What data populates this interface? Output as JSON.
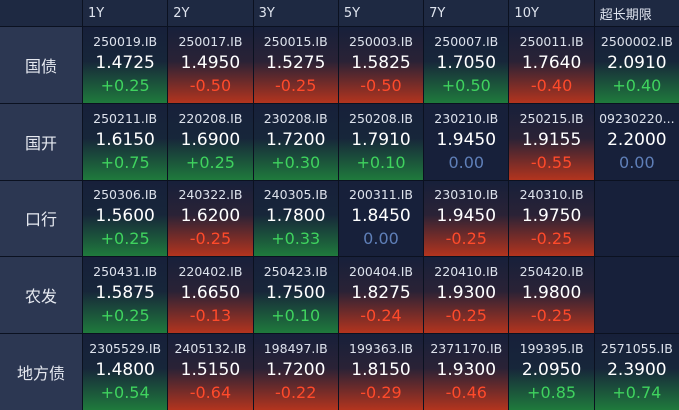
{
  "header": {
    "columns": [
      "1Y",
      "2Y",
      "3Y",
      "5Y",
      "7Y",
      "10Y",
      "超长期限"
    ]
  },
  "rows": [
    {
      "label": "国债",
      "cells": [
        {
          "code": "250019.IB",
          "yield": "1.4725",
          "change": "+0.25"
        },
        {
          "code": "250017.IB",
          "yield": "1.4950",
          "change": "-0.50"
        },
        {
          "code": "250015.IB",
          "yield": "1.5275",
          "change": "-0.25"
        },
        {
          "code": "250003.IB",
          "yield": "1.5825",
          "change": "-0.50"
        },
        {
          "code": "250007.IB",
          "yield": "1.7050",
          "change": "+0.50"
        },
        {
          "code": "250011.IB",
          "yield": "1.7640",
          "change": "-0.40"
        },
        {
          "code": "2500002.IB",
          "yield": "2.0910",
          "change": "+0.40"
        }
      ]
    },
    {
      "label": "国开",
      "cells": [
        {
          "code": "250211.IB",
          "yield": "1.6150",
          "change": "+0.75"
        },
        {
          "code": "220208.IB",
          "yield": "1.6900",
          "change": "+0.25"
        },
        {
          "code": "230208.IB",
          "yield": "1.7200",
          "change": "+0.30"
        },
        {
          "code": "250208.IB",
          "yield": "1.7910",
          "change": "+0.10"
        },
        {
          "code": "230210.IB",
          "yield": "1.9450",
          "change": "0.00"
        },
        {
          "code": "250215.IB",
          "yield": "1.9155",
          "change": "-0.55"
        },
        {
          "code": "09230220...",
          "yield": "2.2000",
          "change": "0.00"
        }
      ]
    },
    {
      "label": "口行",
      "cells": [
        {
          "code": "250306.IB",
          "yield": "1.5600",
          "change": "+0.25"
        },
        {
          "code": "240322.IB",
          "yield": "1.6200",
          "change": "-0.25"
        },
        {
          "code": "240305.IB",
          "yield": "1.7800",
          "change": "+0.33"
        },
        {
          "code": "200311.IB",
          "yield": "1.8450",
          "change": "0.00"
        },
        {
          "code": "230310.IB",
          "yield": "1.9450",
          "change": "-0.25"
        },
        {
          "code": "240310.IB",
          "yield": "1.9750",
          "change": "-0.25"
        },
        null
      ]
    },
    {
      "label": "农发",
      "cells": [
        {
          "code": "250431.IB",
          "yield": "1.5875",
          "change": "+0.25"
        },
        {
          "code": "220402.IB",
          "yield": "1.6650",
          "change": "-0.13"
        },
        {
          "code": "250423.IB",
          "yield": "1.7500",
          "change": "+0.10"
        },
        {
          "code": "200404.IB",
          "yield": "1.8275",
          "change": "-0.24"
        },
        {
          "code": "220410.IB",
          "yield": "1.9300",
          "change": "-0.25"
        },
        {
          "code": "250420.IB",
          "yield": "1.9800",
          "change": "-0.25"
        },
        null
      ]
    },
    {
      "label": "地方债",
      "cells": [
        {
          "code": "2305529.IB",
          "yield": "1.4800",
          "change": "+0.54"
        },
        {
          "code": "2405132.IB",
          "yield": "1.5150",
          "change": "-0.64"
        },
        {
          "code": "198497.IB",
          "yield": "1.7200",
          "change": "-0.22"
        },
        {
          "code": "199363.IB",
          "yield": "1.8150",
          "change": "-0.29"
        },
        {
          "code": "2371170.IB",
          "yield": "1.9300",
          "change": "-0.46"
        },
        {
          "code": "199395.IB",
          "yield": "2.0950",
          "change": "+0.85"
        },
        {
          "code": "2571055.IB",
          "yield": "2.3900",
          "change": "+0.74"
        }
      ]
    }
  ]
}
